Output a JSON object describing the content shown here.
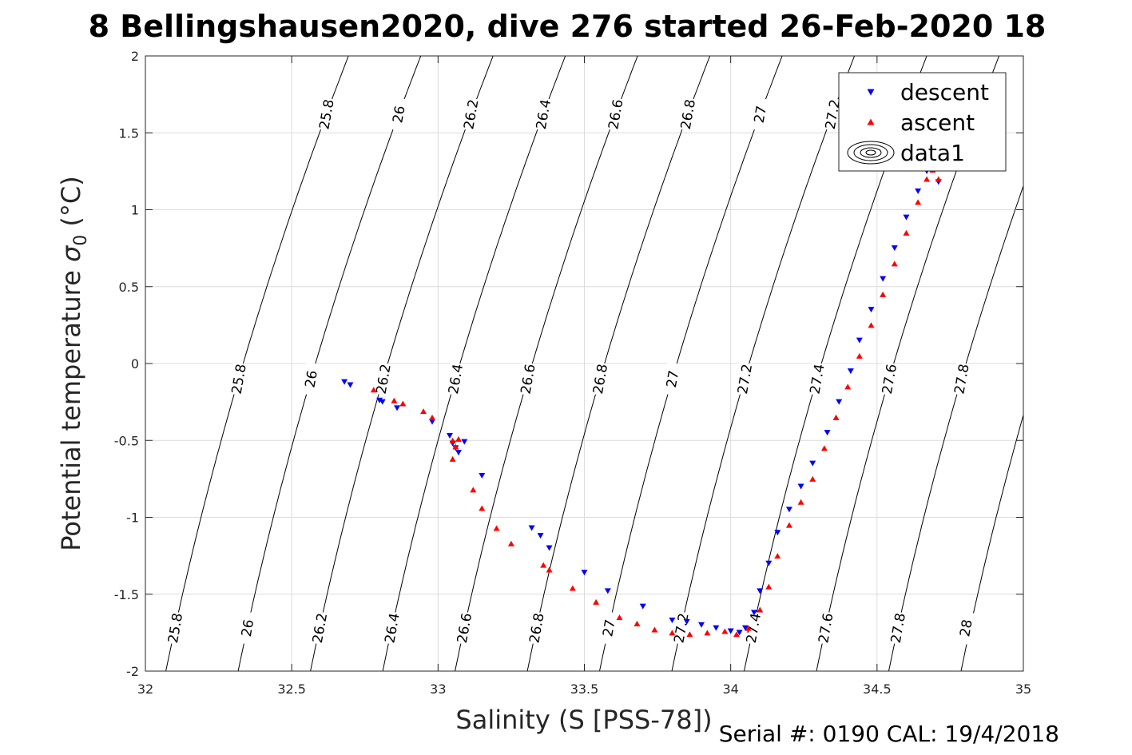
{
  "chart_data": {
    "type": "scatter",
    "title": "8 Bellingshausen2020, dive 276 started 26-Feb-2020 18",
    "xlabel": "Salinity (S [PSS-78])",
    "ylabel_main": "Potential temperature ",
    "ylabel_sigma": "σ",
    "ylabel_sub": "0",
    "ylabel_unit": " (°C)",
    "xlim": [
      32,
      35
    ],
    "ylim": [
      -2,
      2
    ],
    "x_ticks": [
      "32",
      "32.5",
      "33",
      "33.5",
      "34",
      "34.5",
      "35"
    ],
    "y_ticks": [
      "-2",
      "-1.5",
      "-1",
      "-0.5",
      "0",
      "0.5",
      "1",
      "1.5",
      "2"
    ],
    "grid": true,
    "legend_position": "top-right",
    "legend": [
      "descent",
      "ascent",
      "data1"
    ],
    "footer": "Serial #: 0190  CAL: 19/4/2018",
    "density_contours": [
      "25.8",
      "26",
      "26.2",
      "26.4",
      "26.6",
      "26.8",
      "27",
      "27.2",
      "27.4",
      "27.6",
      "27.8",
      "28"
    ],
    "series": [
      {
        "name": "descent",
        "color": "#0000ff",
        "marker": "triangle-down",
        "points": [
          [
            32.68,
            -0.12
          ],
          [
            32.7,
            -0.14
          ],
          [
            32.8,
            -0.24
          ],
          [
            32.81,
            -0.25
          ],
          [
            32.86,
            -0.29
          ],
          [
            32.98,
            -0.38
          ],
          [
            33.04,
            -0.47
          ],
          [
            33.05,
            -0.52
          ],
          [
            33.06,
            -0.55
          ],
          [
            33.07,
            -0.58
          ],
          [
            33.09,
            -0.51
          ],
          [
            33.15,
            -0.73
          ],
          [
            33.32,
            -1.07
          ],
          [
            33.35,
            -1.12
          ],
          [
            33.38,
            -1.2
          ],
          [
            33.5,
            -1.36
          ],
          [
            33.58,
            -1.48
          ],
          [
            33.7,
            -1.58
          ],
          [
            33.8,
            -1.67
          ],
          [
            33.85,
            -1.68
          ],
          [
            33.9,
            -1.7
          ],
          [
            33.95,
            -1.72
          ],
          [
            34.0,
            -1.74
          ],
          [
            34.03,
            -1.75
          ],
          [
            34.05,
            -1.72
          ],
          [
            34.08,
            -1.62
          ],
          [
            34.1,
            -1.48
          ],
          [
            34.13,
            -1.3
          ],
          [
            34.16,
            -1.1
          ],
          [
            34.2,
            -0.95
          ],
          [
            34.24,
            -0.8
          ],
          [
            34.28,
            -0.65
          ],
          [
            34.33,
            -0.45
          ],
          [
            34.37,
            -0.25
          ],
          [
            34.41,
            -0.05
          ],
          [
            34.44,
            0.15
          ],
          [
            34.48,
            0.35
          ],
          [
            34.52,
            0.55
          ],
          [
            34.56,
            0.75
          ],
          [
            34.6,
            0.95
          ],
          [
            34.64,
            1.12
          ],
          [
            34.67,
            1.25
          ],
          [
            34.7,
            1.28
          ],
          [
            34.71,
            1.18
          ]
        ]
      },
      {
        "name": "ascent",
        "color": "#ff0000",
        "marker": "triangle-up",
        "points": [
          [
            32.78,
            -0.17
          ],
          [
            32.85,
            -0.24
          ],
          [
            32.88,
            -0.26
          ],
          [
            32.95,
            -0.31
          ],
          [
            32.98,
            -0.35
          ],
          [
            33.05,
            -0.5
          ],
          [
            33.06,
            -0.54
          ],
          [
            33.07,
            -0.49
          ],
          [
            33.05,
            -0.62
          ],
          [
            33.12,
            -0.82
          ],
          [
            33.15,
            -0.94
          ],
          [
            33.2,
            -1.07
          ],
          [
            33.25,
            -1.17
          ],
          [
            33.36,
            -1.31
          ],
          [
            33.38,
            -1.34
          ],
          [
            33.46,
            -1.46
          ],
          [
            33.54,
            -1.55
          ],
          [
            33.62,
            -1.65
          ],
          [
            33.68,
            -1.69
          ],
          [
            33.74,
            -1.73
          ],
          [
            33.8,
            -1.75
          ],
          [
            33.86,
            -1.76
          ],
          [
            33.92,
            -1.75
          ],
          [
            33.98,
            -1.74
          ],
          [
            34.02,
            -1.76
          ],
          [
            34.06,
            -1.72
          ],
          [
            34.1,
            -1.6
          ],
          [
            34.13,
            -1.45
          ],
          [
            34.16,
            -1.25
          ],
          [
            34.2,
            -1.05
          ],
          [
            34.24,
            -0.9
          ],
          [
            34.28,
            -0.75
          ],
          [
            34.32,
            -0.55
          ],
          [
            34.36,
            -0.35
          ],
          [
            34.4,
            -0.15
          ],
          [
            34.44,
            0.05
          ],
          [
            34.48,
            0.25
          ],
          [
            34.52,
            0.45
          ],
          [
            34.56,
            0.65
          ],
          [
            34.6,
            0.85
          ],
          [
            34.64,
            1.05
          ],
          [
            34.67,
            1.2
          ],
          [
            34.69,
            1.26
          ],
          [
            34.71,
            1.2
          ]
        ]
      }
    ]
  }
}
